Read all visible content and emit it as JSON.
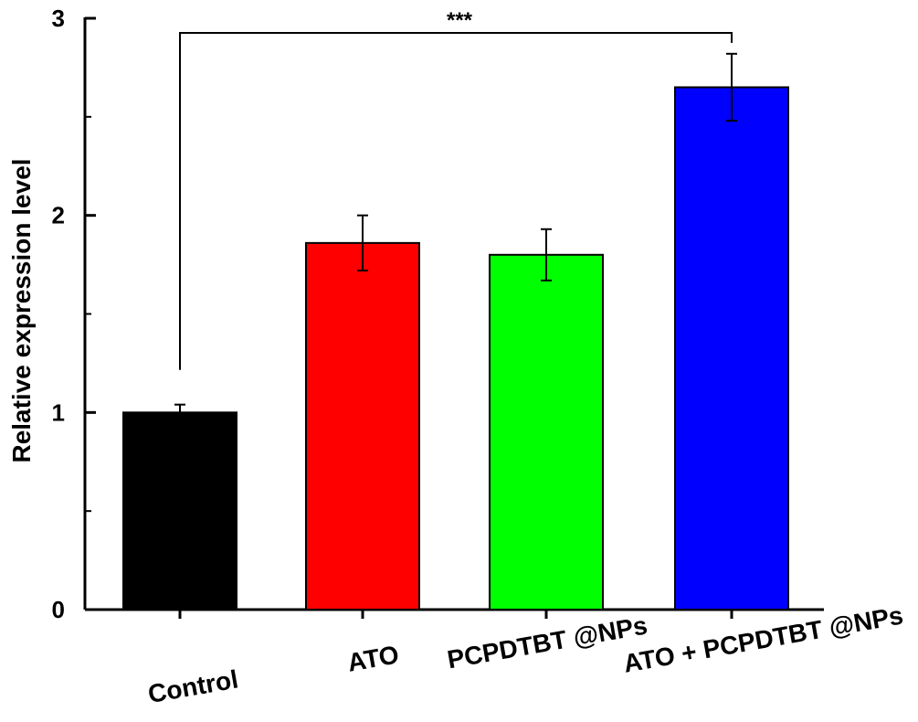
{
  "chart_data": {
    "type": "bar",
    "title": "",
    "xlabel": "",
    "ylabel": "Relative expression level",
    "ylim": [
      0,
      3
    ],
    "yticks": [
      0,
      1,
      2,
      3
    ],
    "grid": false,
    "categories": [
      "Control",
      "ATO",
      "PCPDTBT @NPs",
      "ATO + PCPDTBT @NPs"
    ],
    "values": [
      1.0,
      1.86,
      1.8,
      2.65
    ],
    "errors": [
      0.04,
      0.14,
      0.13,
      0.17
    ],
    "colors": [
      "#000000",
      "#ff0000",
      "#00ff00",
      "#0000ff"
    ],
    "annotations": [
      {
        "type": "significance",
        "from": "Control",
        "to": "ATO + PCPDTBT @NPs",
        "text": "***"
      }
    ]
  }
}
